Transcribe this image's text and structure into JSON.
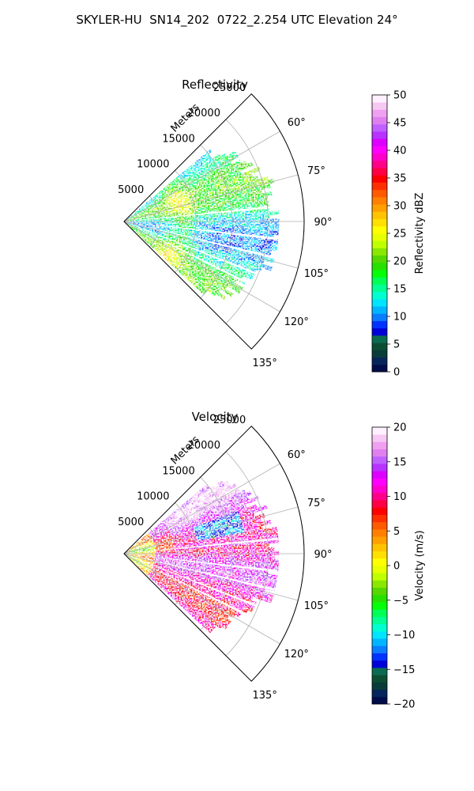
{
  "figure": {
    "title": "SKYLER-HU  SN14_202  0722_2.254 UTC Elevation 24°"
  },
  "chart_data": [
    {
      "type": "polar-sector-radar",
      "title": "Reflectivity",
      "range_label": "Meters",
      "radial_ticks": [
        5000,
        10000,
        15000,
        20000,
        25000
      ],
      "radial_tick_labels": [
        "5000",
        "10000",
        "15000",
        "20000",
        "25000"
      ],
      "rlim": [
        0,
        25000
      ],
      "theta_ticks_deg": [
        60,
        75,
        90,
        105,
        120,
        135
      ],
      "theta_tick_labels": [
        "60°",
        "75°",
        "90°",
        "105°",
        "120°",
        "135°"
      ],
      "theta_range_deg": [
        45,
        135
      ],
      "grid": true,
      "colorbar": {
        "label": "Reflectivity dBZ",
        "range": [
          0,
          50
        ],
        "ticks": [
          0,
          5,
          10,
          15,
          20,
          25,
          30,
          35,
          40,
          45,
          50
        ],
        "tick_labels": [
          "0",
          "5",
          "10",
          "15",
          "20",
          "25",
          "30",
          "35",
          "40",
          "45",
          "50"
        ],
        "colors": [
          "#000d4a",
          "#06255a",
          "#083c3a",
          "#0c4e33",
          "#0a6b52",
          "#0000d8",
          "#0033ff",
          "#0a7dff",
          "#00b5ff",
          "#00e5ff",
          "#00ffd0",
          "#00ff94",
          "#00ff55",
          "#05ff0a",
          "#26e000",
          "#55d800",
          "#8ae800",
          "#bfff00",
          "#e8ff00",
          "#ffff00",
          "#ffe000",
          "#ffc300",
          "#ffa000",
          "#ff8000",
          "#ff5a00",
          "#ff3000",
          "#ff0000",
          "#ff0044",
          "#ff0088",
          "#ff00cc",
          "#ff00ff",
          "#dd00ff",
          "#b833ff",
          "#c060ff",
          "#e080f0",
          "#f0a0f0",
          "#f6c8f4",
          "#fff0ff"
        ]
      },
      "data_summary": {
        "dominant_values_dbz": [
          15,
          22
        ],
        "peak_values_dbz": [
          27,
          32
        ],
        "echo_max_range_m": 21000
      }
    },
    {
      "type": "polar-sector-radar",
      "title": "Velocity",
      "range_label": "Meters",
      "radial_ticks": [
        5000,
        10000,
        15000,
        20000,
        25000
      ],
      "radial_tick_labels": [
        "5000",
        "10000",
        "15000",
        "20000",
        "25000"
      ],
      "rlim": [
        0,
        25000
      ],
      "theta_ticks_deg": [
        60,
        75,
        90,
        105,
        120,
        135
      ],
      "theta_tick_labels": [
        "60°",
        "75°",
        "90°",
        "105°",
        "120°",
        "135°"
      ],
      "theta_range_deg": [
        45,
        135
      ],
      "grid": true,
      "colorbar": {
        "label": "Velocity (m/s)",
        "range": [
          -20,
          20
        ],
        "ticks": [
          -20,
          -15,
          -10,
          -5,
          0,
          5,
          10,
          15,
          20
        ],
        "tick_labels": [
          "−20",
          "−15",
          "−10",
          "−5",
          "0",
          "5",
          "10",
          "15",
          "20"
        ],
        "colors": [
          "#000d4a",
          "#06255a",
          "#083c3a",
          "#0c4e33",
          "#0a6b52",
          "#0000d8",
          "#0033ff",
          "#0a7dff",
          "#00b5ff",
          "#00e5ff",
          "#00ffd0",
          "#00ff94",
          "#00ff55",
          "#05ff0a",
          "#26e000",
          "#55d800",
          "#8ae800",
          "#bfff00",
          "#e8ff00",
          "#ffff00",
          "#ffe000",
          "#ffc300",
          "#ffa000",
          "#ff8000",
          "#ff5a00",
          "#ff3000",
          "#ff0000",
          "#ff0044",
          "#ff0088",
          "#ff00cc",
          "#ff00ff",
          "#dd00ff",
          "#b833ff",
          "#c060ff",
          "#e080f0",
          "#f0a0f0",
          "#f6c8f4",
          "#fff0ff"
        ]
      },
      "data_summary": {
        "dominant_values_ms": [
          8,
          15
        ],
        "near_field_values_ms": [
          -5,
          5
        ],
        "echo_max_range_m": 21000
      }
    }
  ]
}
